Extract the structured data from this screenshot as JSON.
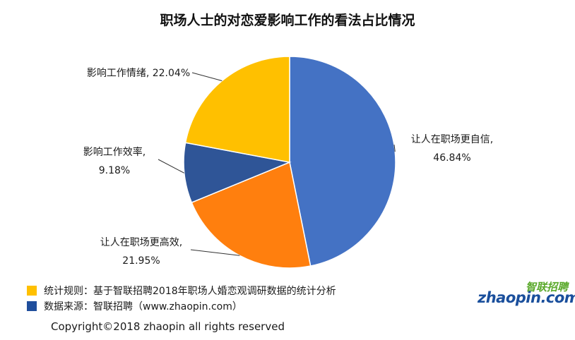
{
  "title": "职场人士的对恋爱影响工作的看法占比情况",
  "chart_data": {
    "type": "pie",
    "title": "职场人士的对恋爱影响工作的看法占比情况",
    "slices": [
      {
        "name": "让人在职场更自信",
        "value": 46.84,
        "label_line1": "让人在职场更自信,",
        "label_line2": "46.84%",
        "color": "#4472C4"
      },
      {
        "name": "让人在职场更高效",
        "value": 21.95,
        "label_line1": "让人在职场更高效,",
        "label_line2": "21.95%",
        "color": "#FF7F0E"
      },
      {
        "name": "影响工作效率",
        "value": 9.18,
        "label_line1": "影响工作效率,",
        "label_line2": "9.18%",
        "color": "#2F5597"
      },
      {
        "name": "影响工作情绪",
        "value": 22.04,
        "label_line1": "影响工作情绪, 22.04%",
        "label_line2": "",
        "color": "#FFC000"
      }
    ]
  },
  "footer": {
    "rule_text": "统计规则：基于智联招聘2018年职场人婚恋观调研数据的统计分析",
    "rule_color": "#FFC000",
    "source_text": "数据来源：智联招聘（www.zhaopin.com）",
    "source_color": "#1F4E9C",
    "copyright": "Copyright©2018 zhaopin all rights reserved"
  },
  "logo": {
    "cn": "智联招聘",
    "en": "zhaopin.com"
  }
}
